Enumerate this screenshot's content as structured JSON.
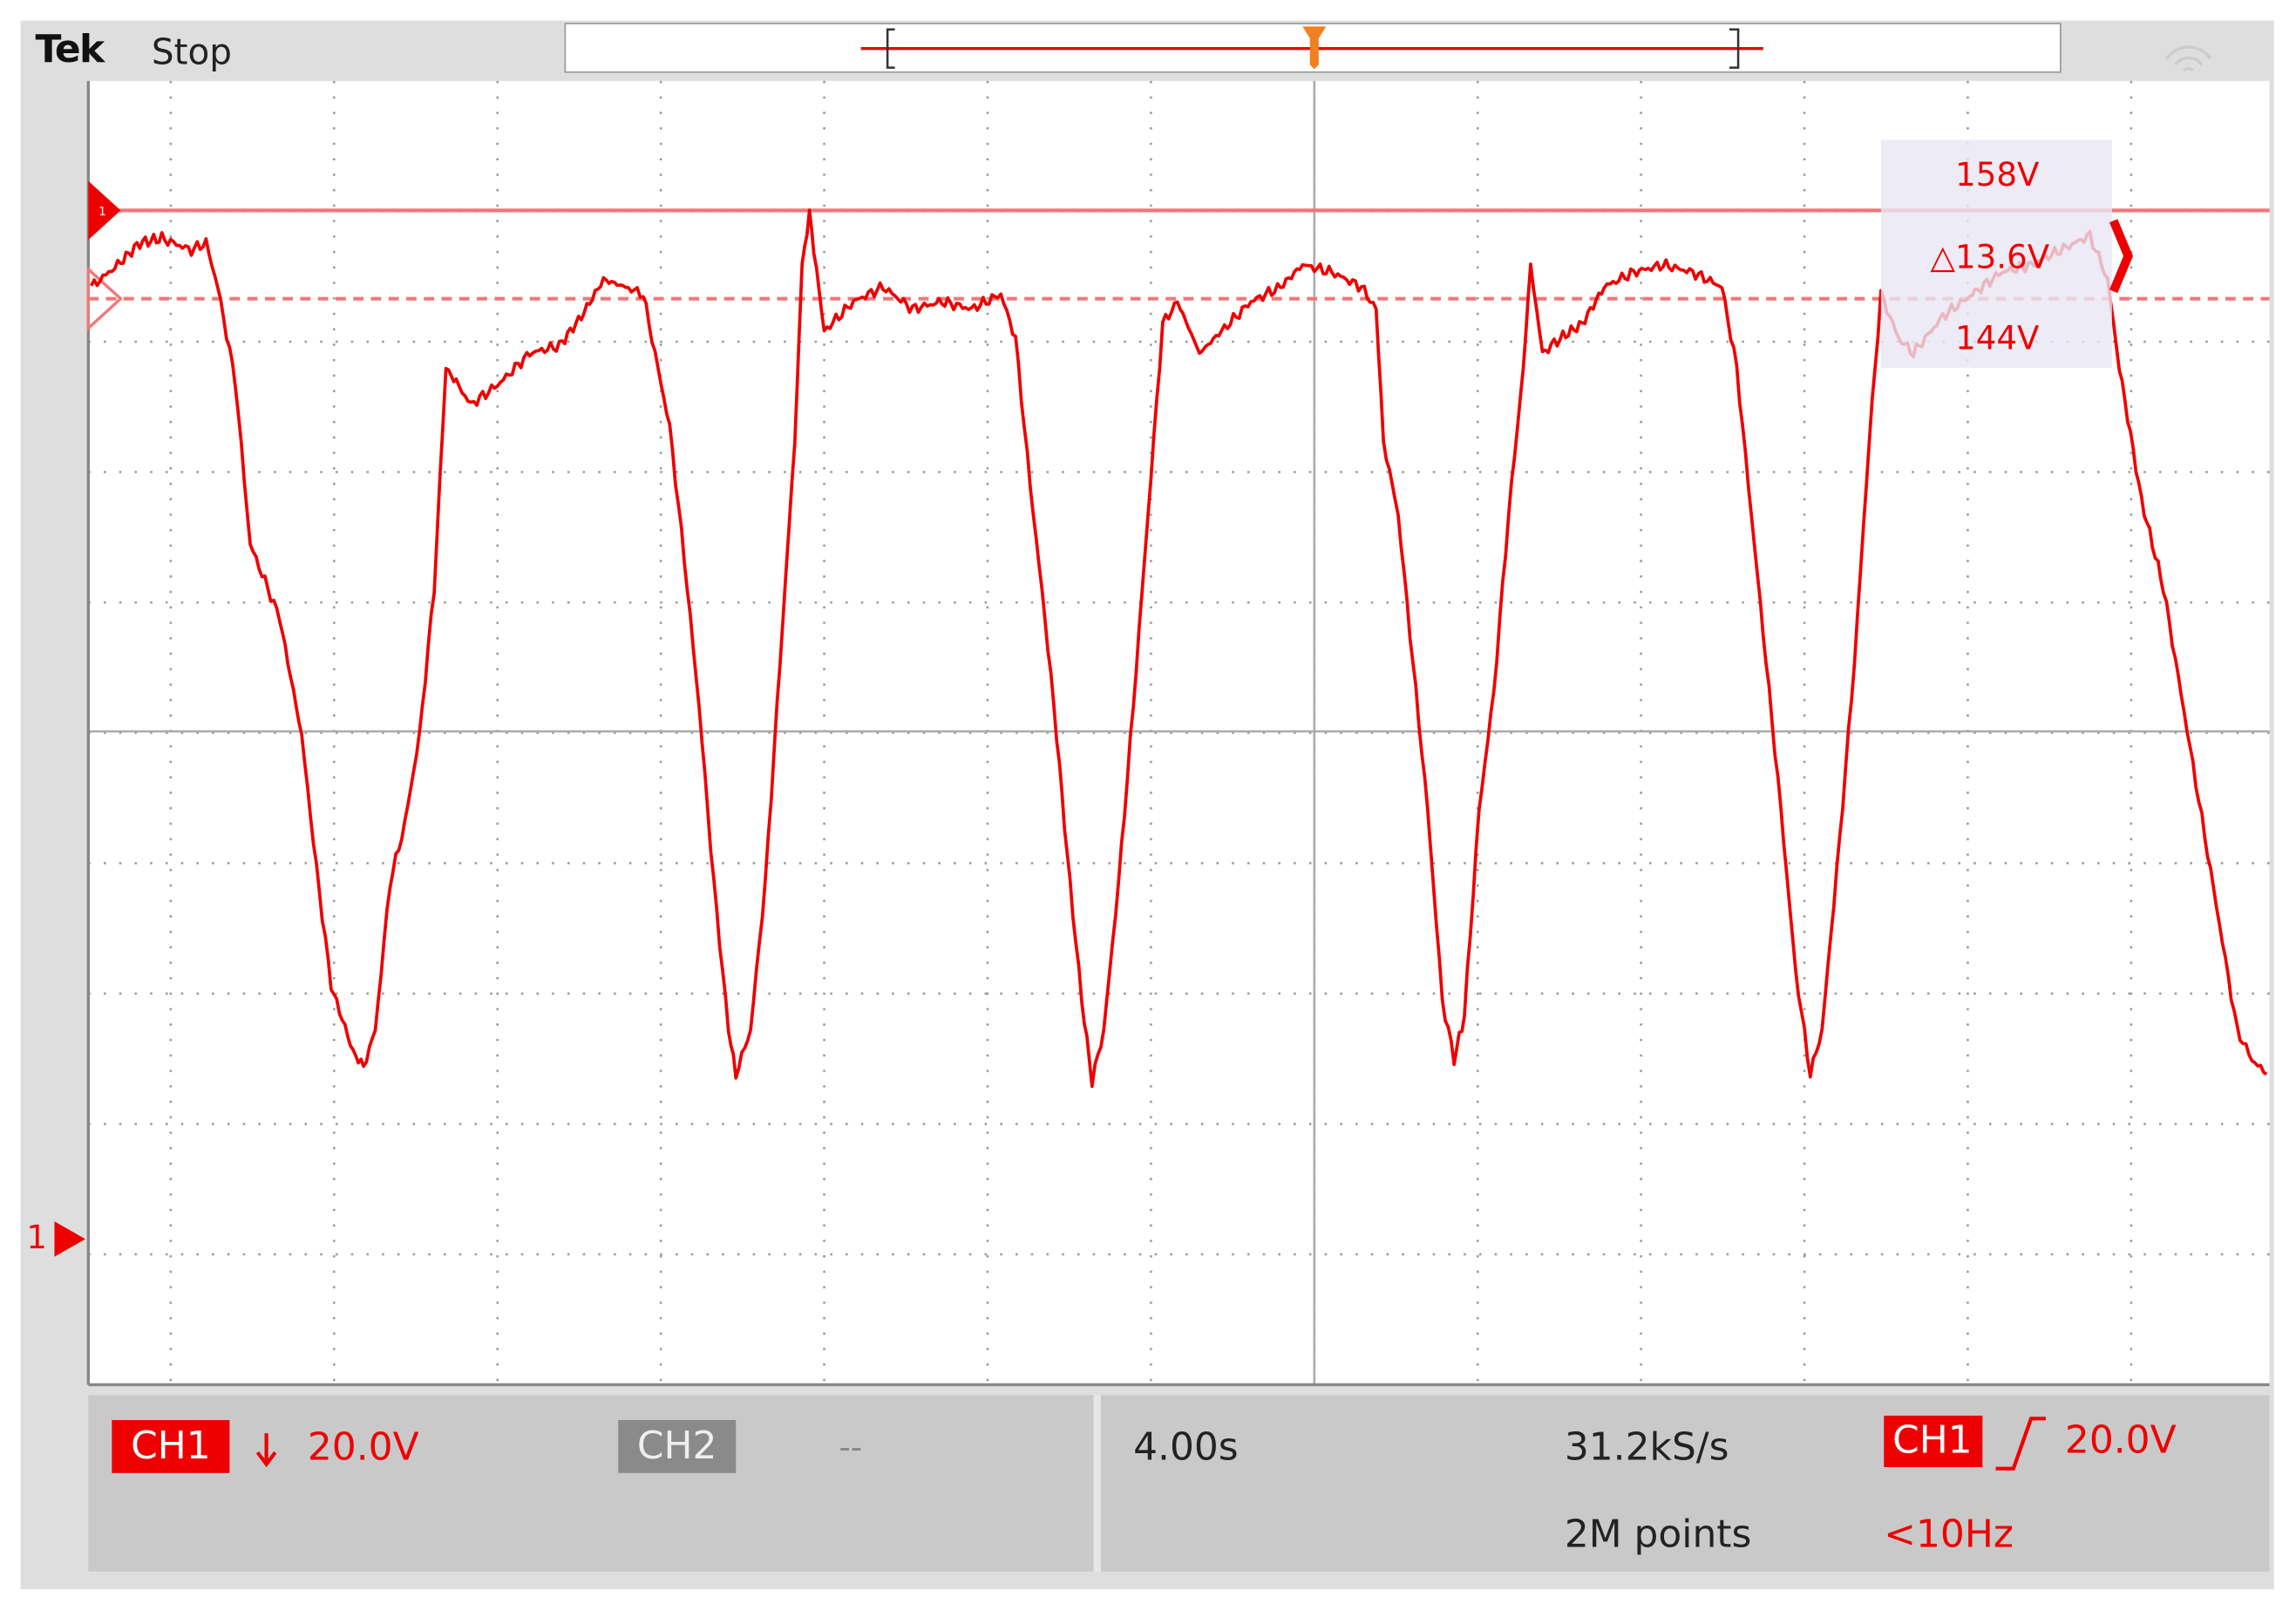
{
  "header": {
    "brand": "Tek",
    "status": "Stop"
  },
  "cursor_marker": "1",
  "cursors": {
    "upper": "158V",
    "delta": "△13.6V",
    "lower": "144V"
  },
  "channel_marker": "1",
  "status_bar": {
    "ch1": {
      "label": "CH1",
      "scale": "20.0V"
    },
    "ch2": {
      "label": "CH2",
      "scale": "--"
    },
    "timebase": "4.00s",
    "sample_rate": "31.2kS/s",
    "record_length": "2M points",
    "trigger": {
      "source": "CH1",
      "level": "20.0V",
      "frequency": "<10Hz"
    }
  }
}
